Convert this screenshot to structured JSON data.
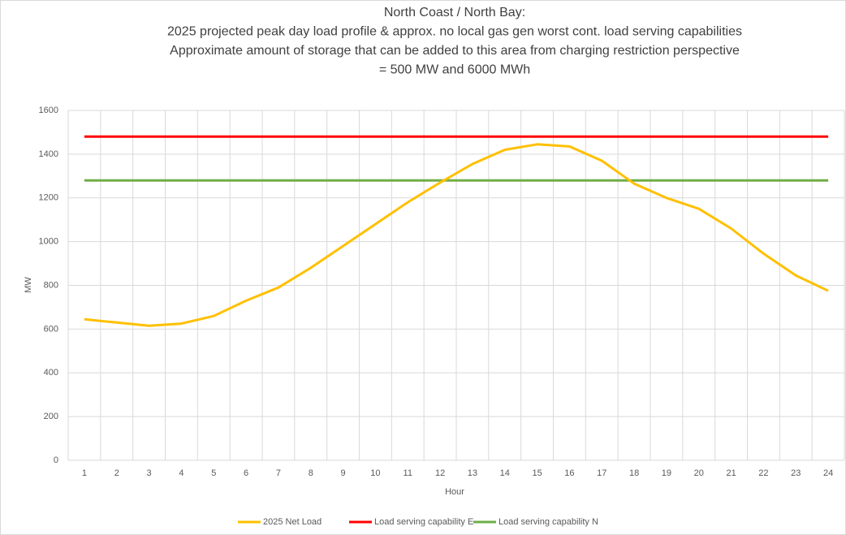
{
  "chart_data": {
    "type": "line",
    "title": [
      "North Coast / North Bay:",
      "2025 projected peak day load profile & approx. no local gas gen worst cont. load serving capabilities",
      "Approximate amount of storage that can be added to this area from charging restriction perspective",
      "= 500 MW and 6000 MWh"
    ],
    "x_label": "Hour",
    "y_label": "MW",
    "categories": [
      "1",
      "2",
      "3",
      "4",
      "5",
      "6",
      "7",
      "8",
      "9",
      "10",
      "11",
      "12",
      "13",
      "14",
      "15",
      "16",
      "17",
      "18",
      "19",
      "20",
      "21",
      "22",
      "23",
      "24"
    ],
    "series": [
      {
        "name": "2025 Net Load",
        "color": "#ffc000",
        "values": [
          645,
          630,
          615,
          625,
          660,
          730,
          790,
          880,
          980,
          1080,
          1180,
          1270,
          1355,
          1420,
          1445,
          1435,
          1370,
          1265,
          1200,
          1150,
          1060,
          945,
          845,
          775
        ]
      },
      {
        "name": "Load serving capability E",
        "color": "#ff0000",
        "values": [
          1480,
          1480,
          1480,
          1480,
          1480,
          1480,
          1480,
          1480,
          1480,
          1480,
          1480,
          1480,
          1480,
          1480,
          1480,
          1480,
          1480,
          1480,
          1480,
          1480,
          1480,
          1480,
          1480,
          1480
        ]
      },
      {
        "name": "Load serving capability N",
        "color": "#70ad47",
        "values": [
          1280,
          1280,
          1280,
          1280,
          1280,
          1280,
          1280,
          1280,
          1280,
          1280,
          1280,
          1280,
          1280,
          1280,
          1280,
          1280,
          1280,
          1280,
          1280,
          1280,
          1280,
          1280,
          1280,
          1280
        ]
      }
    ],
    "ylim": [
      0,
      1600
    ],
    "yticks": [
      0,
      200,
      400,
      600,
      800,
      1000,
      1200,
      1400,
      1600
    ],
    "grid": true,
    "legend": "bottom"
  }
}
